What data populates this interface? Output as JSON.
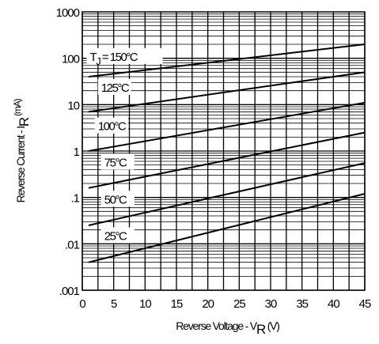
{
  "chart_data": {
    "type": "line",
    "y_scale": "log",
    "grid": true,
    "xlabel": {
      "main": "Reverse Voltage - V",
      "sub": "R",
      "tail": " (V)"
    },
    "ylabel": {
      "main": "Reverse Current - I",
      "sub": "R",
      "tail": " (mA)"
    },
    "xlim": [
      0,
      45
    ],
    "ylim": [
      0.001,
      1000
    ],
    "x_ticks": [
      0,
      5,
      10,
      15,
      20,
      25,
      30,
      35,
      40,
      45
    ],
    "x_tick_labels": [
      "0",
      "5",
      "10",
      "15",
      "20",
      "25",
      "30",
      "35",
      "40",
      "45"
    ],
    "y_ticks": [
      0.001,
      0.01,
      0.1,
      1,
      10,
      100,
      1000
    ],
    "y_tick_labels": [
      ".001",
      ".01",
      ".1",
      "1",
      "10",
      "100",
      "1000"
    ],
    "series": [
      {
        "name": "150°C",
        "label_prefix": "T",
        "label_sub": "J",
        "label_eq": " = ",
        "x": [
          1,
          45
        ],
        "y": [
          40,
          200
        ]
      },
      {
        "name": "125°C",
        "x": [
          1,
          45
        ],
        "y": [
          7,
          50
        ]
      },
      {
        "name": "100°C",
        "x": [
          1,
          45
        ],
        "y": [
          1.0,
          11
        ]
      },
      {
        "name": "75°C",
        "x": [
          1,
          45
        ],
        "y": [
          0.16,
          2.5
        ]
      },
      {
        "name": "50°C",
        "x": [
          1,
          45
        ],
        "y": [
          0.025,
          0.55
        ]
      },
      {
        "name": "25°C",
        "x": [
          1,
          45
        ],
        "y": [
          0.004,
          0.12
        ]
      }
    ]
  }
}
